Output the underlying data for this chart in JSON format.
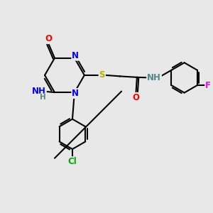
{
  "bg_color": "#e8e8e8",
  "bond_color": "#000000",
  "bond_width": 1.5,
  "atom_colors": {
    "O": "#ff0000",
    "N": "#0000ff",
    "S": "#bbaa00",
    "Cl": "#00aa00",
    "F": "#ff00ff",
    "H": "#558888",
    "C": "#000000"
  },
  "font_size": 8.5,
  "figsize": [
    3.0,
    3.0
  ],
  "dpi": 100
}
